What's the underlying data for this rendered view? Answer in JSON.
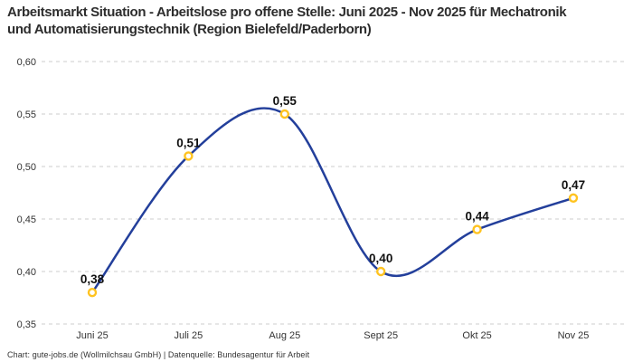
{
  "header": {
    "title": "Arbeitsmarkt Situation - Arbeitslose pro offene Stelle: Juni 2025 - Nov 2025 für Mechatronik und Automatisierungstechnik (Region Bielefeld/Paderborn)"
  },
  "footer": {
    "text": "Chart: gute-jobs.de (Wollmilchsau GmbH) | Datenquelle: Bundesagentur für Arbeit"
  },
  "chart_data": {
    "type": "line",
    "categories": [
      "Juni 25",
      "Juli 25",
      "Aug 25",
      "Sept 25",
      "Okt 25",
      "Nov 25"
    ],
    "values": [
      0.38,
      0.51,
      0.55,
      0.4,
      0.44,
      0.47
    ],
    "value_labels": [
      "0,38",
      "0,51",
      "0,55",
      "0,40",
      "0,44",
      "0,47"
    ],
    "yticks": [
      0.35,
      0.4,
      0.45,
      0.5,
      0.55,
      0.6
    ],
    "ytick_labels": [
      "0,35",
      "0,40",
      "0,45",
      "0,50",
      "0,55",
      "0,60"
    ],
    "ylim": [
      0.35,
      0.6
    ],
    "xlabel": "",
    "ylabel": "",
    "legend": "none",
    "grid": "horizontal-dashed",
    "curve": "smooth-spline",
    "colors": {
      "line": "#233f9b",
      "marker_ring": "#ffc320",
      "marker_fill": "#ffffff",
      "gridline": "#cccccc",
      "title_text": "#2d2d2d",
      "tick_text": "#333333",
      "point_label_text": "#111111"
    }
  }
}
